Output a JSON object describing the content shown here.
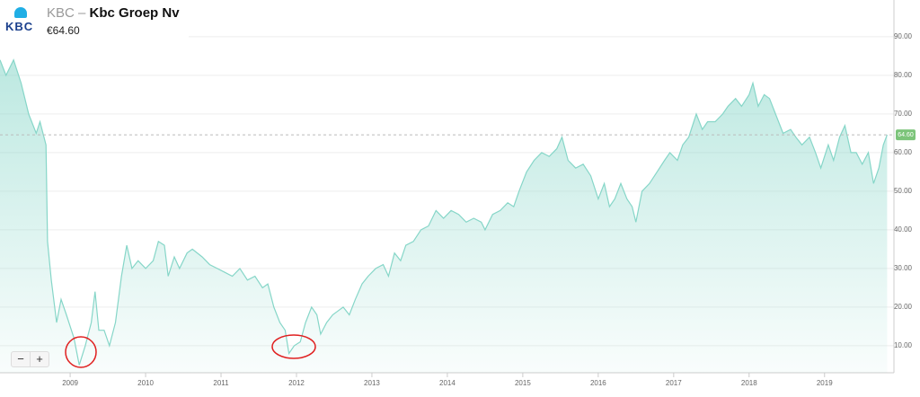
{
  "header": {
    "logo": "KBC",
    "ticker": "KBC",
    "separator": "–",
    "name": "Kbc Groep Nv",
    "price": "€64.60"
  },
  "zoom_controls": [
    "−",
    "+"
  ],
  "chart_data": {
    "type": "area",
    "color": "#86d6c8",
    "x": [
      2008.07,
      2008.15,
      2008.25,
      2008.35,
      2008.45,
      2008.55,
      2008.6,
      2008.68,
      2008.7,
      2008.75,
      2008.82,
      2008.88,
      2008.95,
      2009.05,
      2009.12,
      2009.2,
      2009.28,
      2009.33,
      2009.38,
      2009.45,
      2009.52,
      2009.6,
      2009.68,
      2009.75,
      2009.82,
      2009.9,
      2010.0,
      2010.1,
      2010.17,
      2010.25,
      2010.3,
      2010.38,
      2010.45,
      2010.55,
      2010.62,
      2010.75,
      2010.85,
      2010.95,
      2011.05,
      2011.15,
      2011.25,
      2011.35,
      2011.45,
      2011.55,
      2011.62,
      2011.7,
      2011.78,
      2011.85,
      2011.9,
      2011.97,
      2012.05,
      2012.12,
      2012.2,
      2012.27,
      2012.32,
      2012.4,
      2012.48,
      2012.55,
      2012.62,
      2012.7,
      2012.78,
      2012.87,
      2012.95,
      2013.05,
      2013.15,
      2013.22,
      2013.3,
      2013.38,
      2013.45,
      2013.55,
      2013.65,
      2013.75,
      2013.85,
      2013.95,
      2014.05,
      2014.15,
      2014.25,
      2014.35,
      2014.45,
      2014.5,
      2014.6,
      2014.7,
      2014.8,
      2014.88,
      2014.95,
      2015.05,
      2015.15,
      2015.25,
      2015.35,
      2015.45,
      2015.52,
      2015.6,
      2015.7,
      2015.8,
      2015.9,
      2016.0,
      2016.08,
      2016.15,
      2016.22,
      2016.3,
      2016.38,
      2016.45,
      2016.5,
      2016.58,
      2016.68,
      2016.78,
      2016.88,
      2016.95,
      2017.05,
      2017.12,
      2017.2,
      2017.3,
      2017.38,
      2017.45,
      2017.55,
      2017.65,
      2017.72,
      2017.82,
      2017.9,
      2018.0,
      2018.05,
      2018.12,
      2018.2,
      2018.27,
      2018.35,
      2018.45,
      2018.55,
      2018.62,
      2018.7,
      2018.8,
      2018.88,
      2018.95,
      2019.05,
      2019.12,
      2019.2,
      2019.27,
      2019.35,
      2019.42,
      2019.5,
      2019.58,
      2019.65,
      2019.72,
      2019.78,
      2019.83
    ],
    "values": [
      84,
      80,
      84,
      78,
      70,
      65,
      68,
      62,
      37,
      27,
      16,
      22,
      18,
      12,
      5,
      10,
      16,
      24,
      14,
      14,
      10,
      16,
      28,
      36,
      30,
      32,
      30,
      32,
      37,
      36,
      28,
      33,
      30,
      34,
      35,
      33,
      31,
      30,
      29,
      28,
      30,
      27,
      28,
      25,
      26,
      20,
      16,
      14,
      8,
      10,
      11,
      16,
      20,
      18,
      13,
      16,
      18,
      19,
      20,
      18,
      22,
      26,
      28,
      30,
      31,
      28,
      34,
      32,
      36,
      37,
      40,
      41,
      45,
      43,
      45,
      44,
      42,
      43,
      42,
      40,
      44,
      45,
      47,
      46,
      50,
      55,
      58,
      60,
      59,
      61,
      64,
      58,
      56,
      57,
      54,
      48,
      52,
      46,
      48,
      52,
      48,
      46,
      42,
      50,
      52,
      55,
      58,
      60,
      58,
      62,
      64,
      70,
      66,
      68,
      68,
      70,
      72,
      74,
      72,
      75,
      78,
      72,
      75,
      74,
      70,
      65,
      66,
      64,
      62,
      64,
      60,
      56,
      62,
      58,
      64,
      67,
      60,
      60,
      57,
      60,
      52,
      56,
      62,
      64.6
    ],
    "xlim": [
      2008.07,
      2019.92
    ],
    "xticks": [
      2009,
      2010,
      2011,
      2012,
      2013,
      2014,
      2015,
      2016,
      2017,
      2018,
      2019
    ],
    "ylim": [
      3,
      99.5
    ],
    "yticks": [
      {
        "value": 10,
        "label": "10.00"
      },
      {
        "value": 20,
        "label": "20.00"
      },
      {
        "value": 30,
        "label": "30.00"
      },
      {
        "value": 40,
        "label": "40.00"
      },
      {
        "value": 50,
        "label": "50.00"
      },
      {
        "value": 60,
        "label": "60.00"
      },
      {
        "value": 70,
        "label": "70.00"
      },
      {
        "value": 80,
        "label": "80.00"
      },
      {
        "value": 90,
        "label": "90.00"
      }
    ],
    "grid": true,
    "last_price": {
      "value": 64.6,
      "label": "64.60"
    }
  }
}
